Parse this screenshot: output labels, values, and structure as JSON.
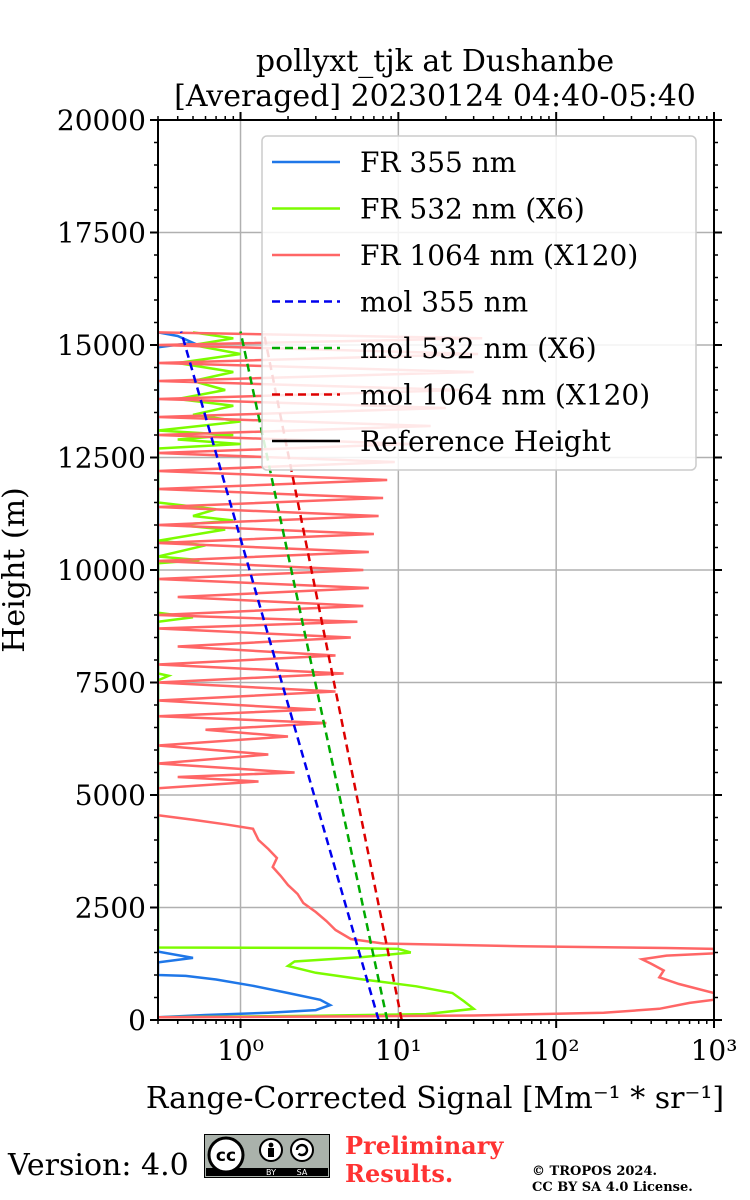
{
  "chart_data": {
    "type": "line",
    "title": [
      "pollyxt_tjk at Dushanbe",
      "[Averaged] 20230124 04:40-05:40"
    ],
    "xlabel": "Range-Corrected Signal [Mm⁻¹ * sr⁻¹]",
    "ylabel": "Height (m)",
    "xscale": "log",
    "xlim": [
      0.3,
      1000
    ],
    "ylim": [
      0,
      20000
    ],
    "x_ticks": [
      {
        "value": 1,
        "label": "10⁰"
      },
      {
        "value": 10,
        "label": "10¹"
      },
      {
        "value": 100,
        "label": "10²"
      },
      {
        "value": 1000,
        "label": "10³"
      }
    ],
    "y_ticks": [
      0,
      2500,
      5000,
      7500,
      10000,
      12500,
      15000,
      17500,
      20000
    ],
    "grid": true,
    "legend_position": "top-right",
    "series": [
      {
        "name": "FR 355 nm",
        "color": "#1f77e8",
        "style": "solid",
        "points": [
          [
            0.3,
            60
          ],
          [
            0.6,
            110
          ],
          [
            1.5,
            160
          ],
          [
            3.0,
            220
          ],
          [
            3.7,
            330
          ],
          [
            3.2,
            450
          ],
          [
            2.0,
            600
          ],
          [
            1.2,
            760
          ],
          [
            0.7,
            900
          ],
          [
            0.45,
            980
          ],
          [
            0.3,
            1000
          ],
          [
            0.3,
            1280
          ],
          [
            0.5,
            1380
          ],
          [
            0.3,
            1520
          ],
          [
            0.3,
            14950
          ],
          [
            0.5,
            15050
          ],
          [
            0.4,
            15200
          ],
          [
            0.3,
            15280
          ]
        ]
      },
      {
        "name": "FR 532 nm (X6)",
        "color": "#7cfc00",
        "style": "solid",
        "points": [
          [
            0.3,
            60
          ],
          [
            3,
            95
          ],
          [
            15,
            130
          ],
          [
            30,
            250
          ],
          [
            26,
            420
          ],
          [
            22,
            600
          ],
          [
            13,
            750
          ],
          [
            6,
            900
          ],
          [
            3,
            1050
          ],
          [
            2,
            1200
          ],
          [
            2.2,
            1300
          ],
          [
            6,
            1400
          ],
          [
            12,
            1500
          ],
          [
            10,
            1580
          ],
          [
            4,
            1600
          ],
          [
            0.3,
            1610
          ],
          [
            0.3,
            2500
          ],
          [
            0.3,
            7550
          ],
          [
            0.35,
            7650
          ],
          [
            0.3,
            7700
          ],
          [
            0.3,
            8850
          ],
          [
            0.5,
            8950
          ],
          [
            0.3,
            9050
          ],
          [
            0.3,
            10150
          ],
          [
            0.55,
            10220
          ],
          [
            0.3,
            10300
          ],
          [
            0.6,
            10550
          ],
          [
            0.3,
            10650
          ],
          [
            0.8,
            10900
          ],
          [
            0.4,
            11000
          ],
          [
            0.9,
            11100
          ],
          [
            0.5,
            11200
          ],
          [
            0.7,
            11350
          ],
          [
            0.3,
            11500
          ],
          [
            0.3,
            12700
          ],
          [
            1.0,
            12800
          ],
          [
            0.4,
            12900
          ],
          [
            0.9,
            13000
          ],
          [
            0.3,
            13100
          ],
          [
            1.0,
            13300
          ],
          [
            0.5,
            13450
          ],
          [
            0.9,
            13650
          ],
          [
            0.4,
            13800
          ],
          [
            0.8,
            14000
          ],
          [
            0.5,
            14200
          ],
          [
            0.9,
            14400
          ],
          [
            0.4,
            14600
          ],
          [
            1.0,
            14800
          ],
          [
            0.5,
            15000
          ],
          [
            0.9,
            15150
          ],
          [
            0.5,
            15280
          ]
        ]
      },
      {
        "name": "FR 1064 nm (X120)",
        "color": "#ff6666",
        "style": "solid",
        "points": [
          [
            0.3,
            60
          ],
          [
            5,
            80
          ],
          [
            30,
            100
          ],
          [
            200,
            160
          ],
          [
            450,
            250
          ],
          [
            700,
            380
          ],
          [
            1000,
            450
          ],
          [
            1000,
            600
          ],
          [
            600,
            800
          ],
          [
            450,
            950
          ],
          [
            480,
            1100
          ],
          [
            400,
            1250
          ],
          [
            350,
            1350
          ],
          [
            500,
            1430
          ],
          [
            1000,
            1480
          ],
          [
            1000,
            1580
          ],
          [
            500,
            1600
          ],
          [
            60,
            1640
          ],
          [
            8,
            1700
          ],
          [
            5,
            1800
          ],
          [
            4,
            2000
          ],
          [
            3.5,
            2200
          ],
          [
            3.0,
            2400
          ],
          [
            2.5,
            2600
          ],
          [
            2.3,
            2800
          ],
          [
            2.0,
            3000
          ],
          [
            1.8,
            3200
          ],
          [
            1.6,
            3400
          ],
          [
            1.7,
            3600
          ],
          [
            1.5,
            3800
          ],
          [
            1.3,
            4000
          ],
          [
            1.2,
            4250
          ],
          [
            0.8,
            4350
          ],
          [
            0.5,
            4450
          ],
          [
            0.3,
            4550
          ],
          [
            0.3,
            5150
          ],
          [
            1.3,
            5300
          ],
          [
            0.4,
            5400
          ],
          [
            2.2,
            5500
          ],
          [
            0.3,
            5700
          ],
          [
            1.5,
            5900
          ],
          [
            0.3,
            6100
          ],
          [
            2.0,
            6300
          ],
          [
            0.6,
            6450
          ],
          [
            3.5,
            6600
          ],
          [
            0.3,
            6750
          ],
          [
            3.0,
            6900
          ],
          [
            0.3,
            7100
          ],
          [
            4.0,
            7300
          ],
          [
            0.3,
            7500
          ],
          [
            4.5,
            7700
          ],
          [
            0.3,
            7900
          ],
          [
            4.0,
            8100
          ],
          [
            0.4,
            8300
          ],
          [
            5.0,
            8500
          ],
          [
            0.3,
            8700
          ],
          [
            5.5,
            8850
          ],
          [
            0.3,
            9000
          ],
          [
            6.0,
            9200
          ],
          [
            0.4,
            9400
          ],
          [
            6.5,
            9600
          ],
          [
            0.3,
            9800
          ],
          [
            6.0,
            10000
          ],
          [
            0.3,
            10200
          ],
          [
            6.5,
            10400
          ],
          [
            0.3,
            10600
          ],
          [
            7.0,
            10800
          ],
          [
            0.3,
            11000
          ],
          [
            7.5,
            11200
          ],
          [
            0.3,
            11400
          ],
          [
            8.0,
            11600
          ],
          [
            0.3,
            11800
          ],
          [
            8.5,
            12000
          ],
          [
            0.3,
            12200
          ],
          [
            9.5,
            12400
          ],
          [
            0.3,
            12600
          ],
          [
            12,
            12800
          ],
          [
            0.3,
            13000
          ],
          [
            16,
            13200
          ],
          [
            0.3,
            13400
          ],
          [
            20,
            13600
          ],
          [
            0.3,
            13800
          ],
          [
            25,
            14000
          ],
          [
            0.3,
            14200
          ],
          [
            30,
            14400
          ],
          [
            0.3,
            14600
          ],
          [
            32,
            14800
          ],
          [
            0.3,
            15000
          ],
          [
            34,
            15150
          ],
          [
            0.3,
            15280
          ]
        ]
      },
      {
        "name": "mol 355 nm",
        "color": "#0000ee",
        "style": "dashed",
        "points": [
          [
            7.5,
            0
          ],
          [
            0.42,
            15300
          ]
        ]
      },
      {
        "name": "mol 532 nm (X6)",
        "color": "#00aa00",
        "style": "dashed",
        "points": [
          [
            8.5,
            0
          ],
          [
            1.0,
            15300
          ]
        ]
      },
      {
        "name": "mol 1064 nm (X120)",
        "color": "#dd0000",
        "style": "dashed",
        "points": [
          [
            10.5,
            0
          ],
          [
            1.4,
            15300
          ]
        ]
      },
      {
        "name": "Reference Height",
        "color": "#000000",
        "style": "solid",
        "points": []
      }
    ]
  },
  "footer": {
    "version": "Version: 4.0",
    "preliminary": [
      "Preliminary",
      "Results."
    ],
    "copyright": [
      "© TROPOS 2024.",
      "CC BY SA 4.0 License."
    ],
    "license_badge": {
      "left": "cc",
      "labels": [
        "BY",
        "SA"
      ]
    }
  }
}
